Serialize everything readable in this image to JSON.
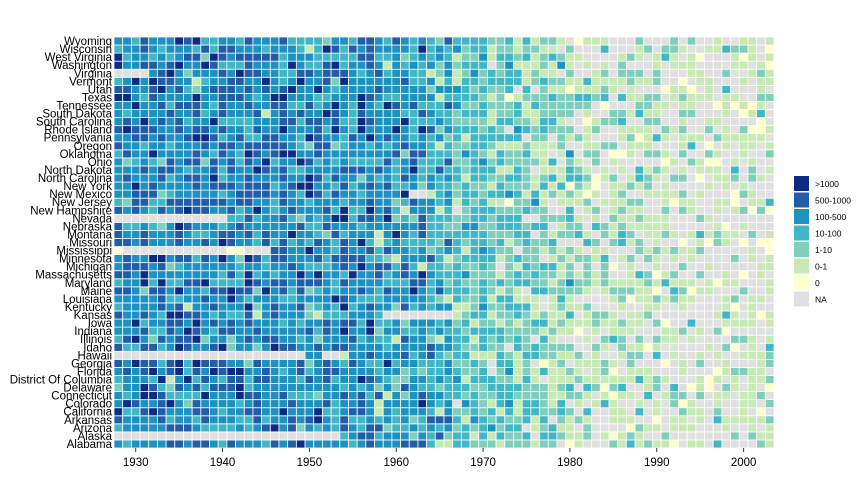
{
  "chart_data": {
    "type": "heatmap",
    "title": "",
    "xlabel": "",
    "ylabel": "",
    "x_range": [
      1928,
      2003
    ],
    "x_ticks": [
      1930,
      1940,
      1950,
      1960,
      1970,
      1980,
      1990,
      2000
    ],
    "x_tick_labels": [
      "1930",
      "1940",
      "1950",
      "1960",
      "1970",
      "1980",
      "1990",
      "2000"
    ],
    "states": [
      "Alabama",
      "Alaska",
      "Arizona",
      "Arkansas",
      "California",
      "Colorado",
      "Connecticut",
      "Delaware",
      "District Of Columbia",
      "Florida",
      "Georgia",
      "Hawaii",
      "Idaho",
      "Illinois",
      "Indiana",
      "Iowa",
      "Kansas",
      "Kentucky",
      "Louisiana",
      "Maine",
      "Maryland",
      "Massachusetts",
      "Michigan",
      "Minnesota",
      "Mississippi",
      "Missouri",
      "Montana",
      "Nebraska",
      "Nevada",
      "New Hampshire",
      "New Jersey",
      "New Mexico",
      "New York",
      "North Carolina",
      "North Dakota",
      "Ohio",
      "Oklahoma",
      "Oregon",
      "Pennsylvania",
      "Rhode Island",
      "South Carolina",
      "South Dakota",
      "Tennessee",
      "Texas",
      "Utah",
      "Vermont",
      "Virginia",
      "Washington",
      "West Virginia",
      "Wisconsin",
      "Wyoming"
    ],
    "legend": {
      "position": "right",
      "items": [
        {
          "label": ">1000",
          "color": "#0c2c84",
          "level": 7
        },
        {
          "label": "500-1000",
          "color": "#225ea8",
          "level": 6
        },
        {
          "label": "100-500",
          "color": "#1d91c0",
          "level": 5
        },
        {
          "label": "10-100",
          "color": "#41b6c4",
          "level": 4
        },
        {
          "label": "1-10",
          "color": "#7fcdbb",
          "level": 3
        },
        {
          "label": "0-1",
          "color": "#c7e9b4",
          "level": 2
        },
        {
          "label": "0",
          "color": "#ffffcc",
          "level": 1
        },
        {
          "label": "NA",
          "color": "#e0e0e0",
          "level": 0
        }
      ]
    },
    "background_color": "#e0e0e0",
    "grid": false,
    "encoding": "category levels: 7 >1000, 6 500-1000, 5 100-500, 4 10-100, 3 1-10, 2 0-1, 1 zero, 0 NA",
    "na_segments": [
      {
        "state": "Virginia",
        "from": 1928,
        "to": 1931
      },
      {
        "state": "Nevada",
        "from": 1928,
        "to": 1940
      },
      {
        "state": "Hawaii",
        "from": 1928,
        "to": 1949
      },
      {
        "state": "Hawaii",
        "from": 1952,
        "to": 1953
      },
      {
        "state": "Kansas",
        "from": 1959,
        "to": 1966
      },
      {
        "state": "New Mexico",
        "from": 1962,
        "to": 1963
      },
      {
        "state": "Alaska",
        "from": 1928,
        "to": 1953
      },
      {
        "state": "Mississippi",
        "from": 1929,
        "to": 1940
      },
      {
        "state": "Mississippi",
        "from": 1943,
        "to": 1945
      }
    ],
    "zero_segments": [
      {
        "state": "Mississippi",
        "from": 1928,
        "to": 1928
      },
      {
        "state": "Mississippi",
        "from": 1941,
        "to": 1942
      }
    ],
    "trend": [
      {
        "from": 1928,
        "to": 1938,
        "dist": [
          0.12,
          0.28,
          0.42,
          0.14,
          0.03,
          0.01,
          0,
          0
        ]
      },
      {
        "from": 1939,
        "to": 1949,
        "dist": [
          0.1,
          0.27,
          0.43,
          0.16,
          0.03,
          0.01,
          0,
          0
        ]
      },
      {
        "from": 1950,
        "to": 1957,
        "dist": [
          0.08,
          0.22,
          0.46,
          0.19,
          0.04,
          0.01,
          0,
          0
        ]
      },
      {
        "from": 1958,
        "to": 1963,
        "dist": [
          0.05,
          0.15,
          0.45,
          0.27,
          0.06,
          0.02,
          0,
          0
        ]
      },
      {
        "from": 1964,
        "to": 1966,
        "dist": [
          0.01,
          0.05,
          0.3,
          0.45,
          0.15,
          0.04,
          0,
          0
        ]
      },
      {
        "from": 1967,
        "to": 1970,
        "dist": [
          0,
          0.01,
          0.06,
          0.48,
          0.35,
          0.09,
          0,
          0.01
        ]
      },
      {
        "from": 1971,
        "to": 1975,
        "dist": [
          0,
          0,
          0.02,
          0.35,
          0.38,
          0.2,
          0.01,
          0.04
        ]
      },
      {
        "from": 1976,
        "to": 1980,
        "dist": [
          0,
          0,
          0.01,
          0.16,
          0.35,
          0.34,
          0.02,
          0.12
        ]
      },
      {
        "from": 1981,
        "to": 1985,
        "dist": [
          0,
          0,
          0,
          0.05,
          0.2,
          0.38,
          0.04,
          0.33
        ]
      },
      {
        "from": 1986,
        "to": 1990,
        "dist": [
          0,
          0,
          0,
          0.04,
          0.2,
          0.36,
          0.04,
          0.36
        ]
      },
      {
        "from": 1991,
        "to": 1995,
        "dist": [
          0,
          0,
          0,
          0.02,
          0.14,
          0.35,
          0.05,
          0.44
        ]
      },
      {
        "from": 1996,
        "to": 2003,
        "dist": [
          0,
          0,
          0,
          0.02,
          0.1,
          0.3,
          0.07,
          0.51
        ]
      }
    ]
  }
}
